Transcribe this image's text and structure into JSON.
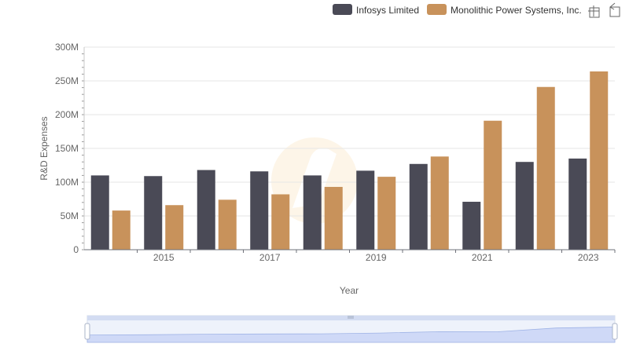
{
  "chart_data": {
    "type": "bar",
    "title": "",
    "xlabel": "Year",
    "ylabel": "R&D Expenses",
    "x": [
      2014,
      2015,
      2016,
      2017,
      2018,
      2019,
      2020,
      2021,
      2022,
      2023
    ],
    "x_tick_labels": [
      "2015",
      "2017",
      "2019",
      "2021",
      "2023"
    ],
    "y_tick_labels": [
      "0",
      "50M",
      "100M",
      "150M",
      "200M",
      "250M",
      "300M"
    ],
    "ylim": [
      0,
      300000000
    ],
    "grid": true,
    "legend_position": "top-right",
    "series": [
      {
        "name": "Infosys Limited",
        "color": "#4a4a56",
        "values": [
          110000000,
          109000000,
          118000000,
          116000000,
          110000000,
          117000000,
          127000000,
          71000000,
          130000000,
          135000000
        ]
      },
      {
        "name": "Monolithic Power Systems, Inc.",
        "color": "#c8925b",
        "values": [
          58000000,
          66000000,
          74000000,
          82000000,
          93000000,
          108000000,
          138000000,
          191000000,
          241000000,
          264000000
        ]
      }
    ]
  },
  "toolbox": {
    "zoom_icon": "zoom-select-icon",
    "restore_icon": "restore-icon"
  }
}
